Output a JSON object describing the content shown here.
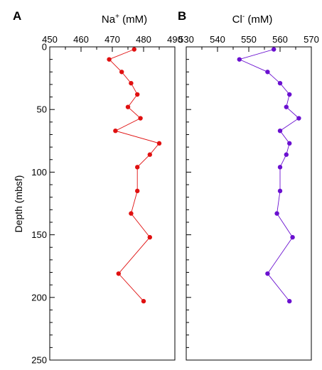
{
  "chart_data": [
    {
      "type": "line",
      "panel_label": "A",
      "title_main": "Na",
      "title_sup": "+",
      "title_unit": " (mM)",
      "xlim": [
        450,
        490
      ],
      "xticks": [
        450,
        460,
        470,
        480,
        490
      ],
      "ylim": [
        0,
        250
      ],
      "yticks": [
        0,
        50,
        100,
        150,
        200,
        250
      ],
      "ylabel": "Depth (mbsf)",
      "y_inverted": true,
      "x_axis_position": "top",
      "color": "#e01010",
      "points": [
        {
          "x": 477,
          "y": 2
        },
        {
          "x": 469,
          "y": 10
        },
        {
          "x": 473,
          "y": 20
        },
        {
          "x": 476,
          "y": 29
        },
        {
          "x": 478,
          "y": 38
        },
        {
          "x": 475,
          "y": 48
        },
        {
          "x": 479,
          "y": 57
        },
        {
          "x": 471,
          "y": 67
        },
        {
          "x": 485,
          "y": 77
        },
        {
          "x": 482,
          "y": 86
        },
        {
          "x": 478,
          "y": 96
        },
        {
          "x": 478,
          "y": 115
        },
        {
          "x": 476,
          "y": 133
        },
        {
          "x": 482,
          "y": 152
        },
        {
          "x": 472,
          "y": 181
        },
        {
          "x": 480,
          "y": 203
        }
      ]
    },
    {
      "type": "line",
      "panel_label": "B",
      "title_main": "Cl",
      "title_sup": "-",
      "title_unit": " (mM)",
      "xlim": [
        530,
        570
      ],
      "xticks": [
        530,
        540,
        550,
        560,
        570
      ],
      "ylim": [
        0,
        250
      ],
      "yticks": [
        0,
        50,
        100,
        150,
        200,
        250
      ],
      "y_inverted": true,
      "x_axis_position": "top",
      "color": "#6a10d0",
      "points": [
        {
          "x": 558,
          "y": 2
        },
        {
          "x": 547,
          "y": 10
        },
        {
          "x": 556,
          "y": 20
        },
        {
          "x": 560,
          "y": 29
        },
        {
          "x": 563,
          "y": 38
        },
        {
          "x": 562,
          "y": 48
        },
        {
          "x": 566,
          "y": 57
        },
        {
          "x": 560,
          "y": 67
        },
        {
          "x": 563,
          "y": 77
        },
        {
          "x": 562,
          "y": 86
        },
        {
          "x": 560,
          "y": 96
        },
        {
          "x": 560,
          "y": 115
        },
        {
          "x": 559,
          "y": 133
        },
        {
          "x": 564,
          "y": 152
        },
        {
          "x": 556,
          "y": 181
        },
        {
          "x": 563,
          "y": 203
        }
      ]
    }
  ]
}
